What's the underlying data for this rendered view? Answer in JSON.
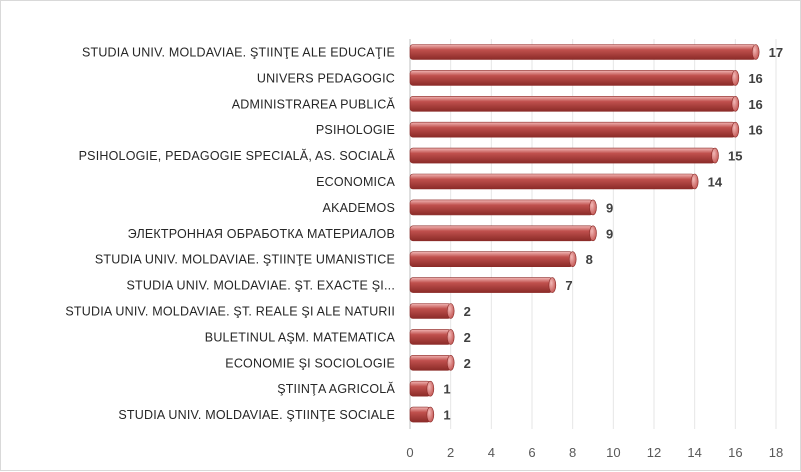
{
  "chart_data": {
    "type": "bar",
    "orientation": "horizontal",
    "title": "",
    "xlabel": "",
    "ylabel": "",
    "categories": [
      "STUDIA UNIV. MOLDAVIAE. ŞTIINŢE ALE EDUCAŢIE",
      "UNIVERS PEDAGOGIC",
      "ADMINISTRAREA PUBLICĂ",
      "PSIHOLOGIE",
      "PSIHOLOGIE, PEDAGOGIE SPECIALĂ, AS. SOCIALĂ",
      "ECONOMICA",
      "AKADEMOS",
      "ЭЛЕКТРОННАЯ ОБРАБОТКА МАТЕРИАЛОВ",
      "STUDIA UNIV. MOLDAVIAE. ŞTIINŢE UMANISTICE",
      "STUDIA UNIV. MOLDAVIAE. ŞT. EXACTE ŞI...",
      "STUDIA UNIV. MOLDAVIAE. ŞT. REALE ŞI ALE NATURII",
      "BULETINUL AŞM. MATEMATICA",
      "ECONOMIE ŞI SOCIOLOGIE",
      "ŞTIINŢA AGRICOLĂ",
      "STUDIA UNIV. MOLDAVIAE. ŞTIINŢE SOCIALE"
    ],
    "values": [
      17,
      16,
      16,
      16,
      15,
      14,
      9,
      9,
      8,
      7,
      2,
      2,
      2,
      1,
      1
    ],
    "xlim": [
      0,
      18
    ],
    "xticks": [
      0,
      2,
      4,
      6,
      8,
      10,
      12,
      14,
      16,
      18
    ],
    "grid": true,
    "legend": "none",
    "bar_color": "#c0504d",
    "bar_highlight": "#f2b8b6",
    "bar_shadow": "#8b2b28"
  }
}
